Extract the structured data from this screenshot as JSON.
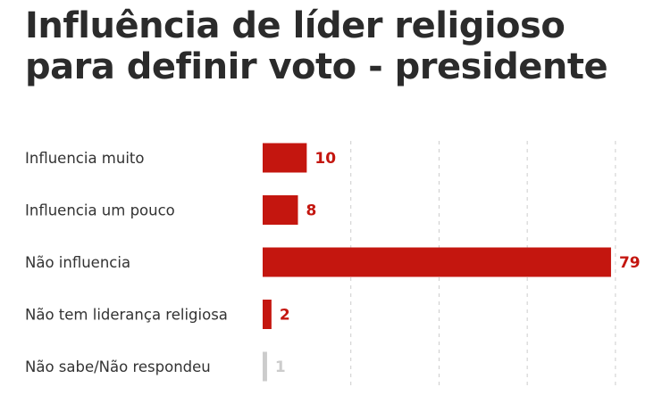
{
  "title_lines": [
    "Influência de líder religioso",
    "para definir voto - presidente"
  ],
  "colors": {
    "bar": "#c4160f",
    "bar_muted": "#cccccc",
    "value": "#c4160f",
    "value_muted": "#cccccc",
    "grid": "#cccccc"
  },
  "chart_data": {
    "type": "bar",
    "orientation": "horizontal",
    "title": "Influência de líder religioso para definir voto - presidente",
    "categories": [
      "Influencia muito",
      "Influencia um pouco",
      "Não influencia",
      "Não tem liderança religiosa",
      "Não sabe/Não respondeu"
    ],
    "values": [
      10,
      8,
      79,
      2,
      1
    ],
    "value_labels": [
      "10",
      "8",
      "79",
      "2",
      "1"
    ],
    "muted": [
      false,
      false,
      false,
      false,
      true
    ],
    "xlim": [
      0,
      80
    ],
    "grid": true,
    "xlabel": "",
    "ylabel": ""
  }
}
